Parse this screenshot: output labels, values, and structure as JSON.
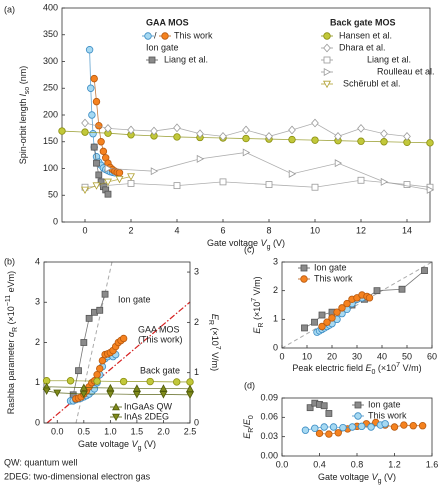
{
  "chart_data": [
    {
      "type": "line",
      "panel": "(a)",
      "xlabel": [
        "Gate voltage ",
        "V",
        "g",
        " (V)"
      ],
      "ylabel": [
        "Spin-orbit length ",
        "l",
        "so",
        " (nm)"
      ],
      "xlim": [
        -1,
        15
      ],
      "xticks": [
        0,
        2,
        4,
        6,
        8,
        10,
        12,
        14
      ],
      "ylim": [
        0,
        400
      ],
      "yticks": [
        0,
        50,
        100,
        150,
        200,
        250,
        300,
        350,
        400
      ],
      "legend_groups": [
        "GAA MOS",
        "Ion gate",
        "Back gate MOS"
      ],
      "legend_separator": "/",
      "series": [
        {
          "color": "#a6d9f2",
          "stroke": "#3b8cc4",
          "marker": "circle",
          "x": [
            0.2,
            0.25,
            0.3,
            0.35,
            0.4,
            0.5,
            0.6,
            0.7,
            0.8,
            0.9,
            1.0,
            1.1,
            1.2,
            1.3
          ],
          "values": [
            322,
            250,
            200,
            165,
            140,
            122,
            112,
            106,
            101,
            98,
            96,
            94,
            93,
            92
          ]
        },
        {
          "name": "This work",
          "color": "#f5821f",
          "stroke": "#b85a10",
          "marker": "circle",
          "x": [
            0.4,
            0.5,
            0.6,
            0.7,
            0.8,
            0.9,
            1.0,
            1.1,
            1.2,
            1.3,
            1.4,
            1.5
          ],
          "values": [
            268,
            225,
            180,
            150,
            132,
            120,
            110,
            102,
            98,
            95,
            93,
            92
          ]
        },
        {
          "name": "Liang et al.",
          "color": "#8a8a8a",
          "stroke": "#555555",
          "marker": "square",
          "x": [
            0.4,
            0.5,
            0.6,
            0.7,
            0.8,
            0.9,
            1.0
          ],
          "values": [
            140,
            110,
            88,
            75,
            66,
            60,
            52
          ]
        },
        {
          "name": "Hansen et al.",
          "color": "#c2c83a",
          "stroke": "#8a8f10",
          "marker": "circle",
          "x": [
            -1,
            0,
            1,
            2,
            3,
            4,
            5,
            6,
            7,
            8,
            9,
            10,
            11,
            12,
            13,
            14,
            15
          ],
          "values": [
            170,
            168,
            166,
            163,
            161,
            159,
            158,
            157,
            156,
            155,
            154,
            153,
            152,
            151,
            150,
            149,
            148
          ]
        },
        {
          "name": "Dhara et al.",
          "color": "#ffffff",
          "stroke": "#9a9a9a",
          "marker": "diamond",
          "x": [
            0,
            1,
            2,
            3,
            4,
            5,
            6,
            7,
            8,
            9,
            10,
            11,
            12,
            13,
            14
          ],
          "values": [
            185,
            175,
            172,
            170,
            176,
            165,
            160,
            172,
            160,
            172,
            185,
            160,
            175,
            165,
            160
          ]
        },
        {
          "name": "Liang et al.",
          "color": "#ffffff",
          "stroke": "#9a9a9a",
          "marker": "square",
          "x": [
            0,
            2,
            4,
            6,
            8,
            10,
            12,
            14,
            15
          ],
          "values": [
            65,
            72,
            68,
            75,
            70,
            65,
            78,
            70,
            65
          ]
        },
        {
          "name": "Roulleau et al.",
          "color": "#ffffff",
          "stroke": "#9a9a9a",
          "marker": "tri-right",
          "x": [
            1,
            3,
            5,
            7,
            9,
            11,
            13,
            15
          ],
          "values": [
            100,
            95,
            118,
            130,
            90,
            110,
            75,
            60
          ]
        },
        {
          "name": "Schërubl et al.",
          "color": "#ffffff",
          "stroke": "#b0a030",
          "marker": "tri-down",
          "x": [
            0,
            0.5,
            1,
            1.5,
            2
          ],
          "values": [
            60,
            68,
            75,
            80,
            85
          ]
        }
      ]
    },
    {
      "type": "line",
      "panel": "(b)",
      "xlabel": [
        "Gate voltage ",
        "V",
        "g",
        " (V)"
      ],
      "ylabel": [
        "Rashba parameter ",
        "α",
        "R",
        " (×10",
        "−11",
        " eVm)"
      ],
      "y2label": [
        "E",
        "R",
        " (×10",
        "7",
        " V/m)"
      ],
      "xlim": [
        -0.25,
        2.5
      ],
      "xticks": [
        {
          "value": 0,
          "label": "0.0"
        },
        0.5,
        {
          "value": 1,
          "label": "1.0"
        },
        1.5,
        {
          "value": 2,
          "label": "2.0"
        },
        2.5
      ],
      "ylim": [
        0,
        4
      ],
      "yticks": [
        0,
        1,
        2,
        3,
        4
      ],
      "y2lim": [
        0,
        3.2
      ],
      "y2ticks": [
        0,
        1,
        2,
        3
      ],
      "annotations": [
        "Ion gate",
        "GAA MOS",
        "(This work)",
        "Back gate"
      ],
      "series": [
        {
          "color": "#8a8a8a",
          "stroke": "#555555",
          "marker": "square",
          "x": [
            0.3,
            0.4,
            0.5,
            0.6,
            0.7,
            0.8,
            0.9
          ],
          "values": [
            0.7,
            1.3,
            2.0,
            2.6,
            2.75,
            2.8,
            3.2
          ]
        },
        {
          "color": "#a6d9f2",
          "stroke": "#3b8cc4",
          "marker": "circle",
          "x": [
            0.25,
            0.3,
            0.35,
            0.4,
            0.45,
            0.5,
            0.55,
            0.6,
            0.65,
            0.7,
            0.75,
            0.8,
            0.85,
            0.9,
            0.95,
            1.0,
            1.05,
            1.1
          ],
          "values": [
            0.55,
            0.55,
            0.58,
            0.6,
            0.62,
            0.65,
            0.68,
            0.72,
            0.78,
            0.85,
            1.0,
            1.2,
            1.4,
            1.6,
            1.65,
            1.7,
            1.65,
            1.7
          ]
        },
        {
          "color": "#f5821f",
          "stroke": "#b85a10",
          "marker": "circle",
          "x": [
            0.35,
            0.4,
            0.45,
            0.5,
            0.55,
            0.6,
            0.65,
            0.7,
            0.75,
            0.8,
            0.85,
            0.9,
            0.95,
            1.0,
            1.05,
            1.1,
            1.15,
            1.2,
            1.25
          ],
          "values": [
            0.6,
            0.62,
            0.65,
            0.72,
            0.8,
            0.9,
            1.0,
            1.05,
            1.2,
            1.35,
            1.55,
            1.7,
            1.72,
            1.75,
            1.8,
            1.9,
            2.0,
            2.05,
            2.1
          ]
        },
        {
          "color": "#c2c83a",
          "stroke": "#8a8f10",
          "marker": "circle",
          "x": [
            -0.2,
            0.25,
            0.75,
            1.25,
            1.75,
            2.25,
            2.5
          ],
          "values": [
            1.05,
            1.05,
            1.04,
            1.03,
            1.03,
            1.02,
            1.02
          ]
        },
        {
          "name": "InGaAs QW",
          "color": "#7f8a1a",
          "stroke": "#4f5a0a",
          "marker": "triangle",
          "x": [
            -0.2,
            0.5,
            1.0,
            1.5,
            2.0,
            2.5
          ],
          "values": [
            0.9,
            0.88,
            0.87,
            0.86,
            0.86,
            0.85
          ]
        },
        {
          "name": "InAs 2DEG",
          "color": "#7f8a1a",
          "stroke": "#4f5a0a",
          "marker": "tri-down",
          "x": [
            -0.2,
            0.0,
            0.5,
            1.0,
            1.5,
            2.0,
            2.5
          ],
          "values": [
            0.8,
            0.75,
            0.72,
            0.72,
            0.71,
            0.71,
            0.7
          ]
        }
      ]
    },
    {
      "type": "line",
      "panel": "(c)",
      "xlabel": [
        "Peak electric field ",
        "E",
        "0",
        " (×10",
        "7",
        " V/m)"
      ],
      "ylabel": [
        "E",
        "R",
        " (×10",
        "7",
        " V/m)"
      ],
      "xlim": [
        0,
        60
      ],
      "xticks": [
        0,
        10,
        20,
        30,
        40,
        50,
        60
      ],
      "ylim": [
        0,
        3
      ],
      "yticks": [
        0,
        1,
        2,
        3
      ],
      "series": [
        {
          "name": "Ion gate",
          "color": "#8a8a8a",
          "stroke": "#555555",
          "marker": "square",
          "x": [
            9,
            13,
            16,
            20,
            24,
            28,
            33,
            38,
            48,
            57
          ],
          "values": [
            0.7,
            0.9,
            1.15,
            1.25,
            1.3,
            1.5,
            1.7,
            2.0,
            2.05,
            2.7
          ]
        },
        {
          "color": "#a6d9f2",
          "stroke": "#3b8cc4",
          "marker": "circle",
          "x": [
            14,
            15,
            16,
            17,
            18,
            19,
            20,
            22,
            24,
            26,
            28,
            30,
            32
          ],
          "values": [
            0.55,
            0.6,
            0.65,
            0.7,
            0.75,
            0.8,
            0.85,
            1.0,
            1.2,
            1.35,
            1.55,
            1.7,
            1.75
          ]
        },
        {
          "name": "This work",
          "color": "#f5821f",
          "stroke": "#b85a10",
          "marker": "circle",
          "x": [
            16,
            18,
            20,
            22,
            24,
            26,
            28,
            30,
            32,
            34,
            35
          ],
          "values": [
            0.75,
            0.9,
            1.05,
            1.25,
            1.4,
            1.55,
            1.7,
            1.75,
            1.85,
            1.8,
            1.75
          ]
        }
      ]
    },
    {
      "type": "line",
      "panel": "(d)",
      "xlabel": [
        "Gate voltage ",
        "V",
        "g",
        " (V)"
      ],
      "ylabel": [
        "E",
        "R",
        "/",
        "E",
        "0"
      ],
      "xlim": [
        0,
        1.6
      ],
      "xticks": [
        {
          "value": 0,
          "label": "0.0"
        },
        0.4,
        0.8,
        1.2,
        1.6
      ],
      "ylim": [
        0,
        0.09
      ],
      "yticks": [
        {
          "value": 0,
          "label": "0.00"
        },
        {
          "value": 0.03,
          "label": "0.03"
        },
        {
          "value": 0.06,
          "label": "0.06"
        },
        {
          "value": 0.09,
          "label": "0.09"
        }
      ],
      "series": [
        {
          "name": "Ion gate",
          "color": "#8a8a8a",
          "stroke": "#555555",
          "marker": "square",
          "x": [
            0.3,
            0.35,
            0.4,
            0.45,
            0.5
          ],
          "values": [
            0.075,
            0.082,
            0.08,
            0.078,
            0.066
          ]
        },
        {
          "color": "#f5821f",
          "stroke": "#b85a10",
          "marker": "circle",
          "x": [
            0.4,
            0.5,
            0.6,
            0.7,
            0.8,
            0.9,
            1.0,
            1.1,
            1.2,
            1.3,
            1.4,
            1.5
          ],
          "values": [
            0.035,
            0.034,
            0.036,
            0.042,
            0.046,
            0.05,
            0.052,
            0.048,
            0.045,
            0.048,
            0.047,
            0.047
          ]
        },
        {
          "name": "This work",
          "color": "#a6d9f2",
          "stroke": "#3b8cc4",
          "marker": "circle",
          "x": [
            0.25,
            0.35,
            0.45,
            0.55,
            0.65,
            0.75,
            0.85,
            0.95,
            1.05,
            1.1
          ],
          "values": [
            0.04,
            0.043,
            0.045,
            0.045,
            0.044,
            0.045,
            0.046,
            0.045,
            0.048,
            0.05
          ]
        }
      ]
    }
  ],
  "notes": [
    "QW: quantum well",
    "2DEG: two-dimensional electron gas"
  ]
}
